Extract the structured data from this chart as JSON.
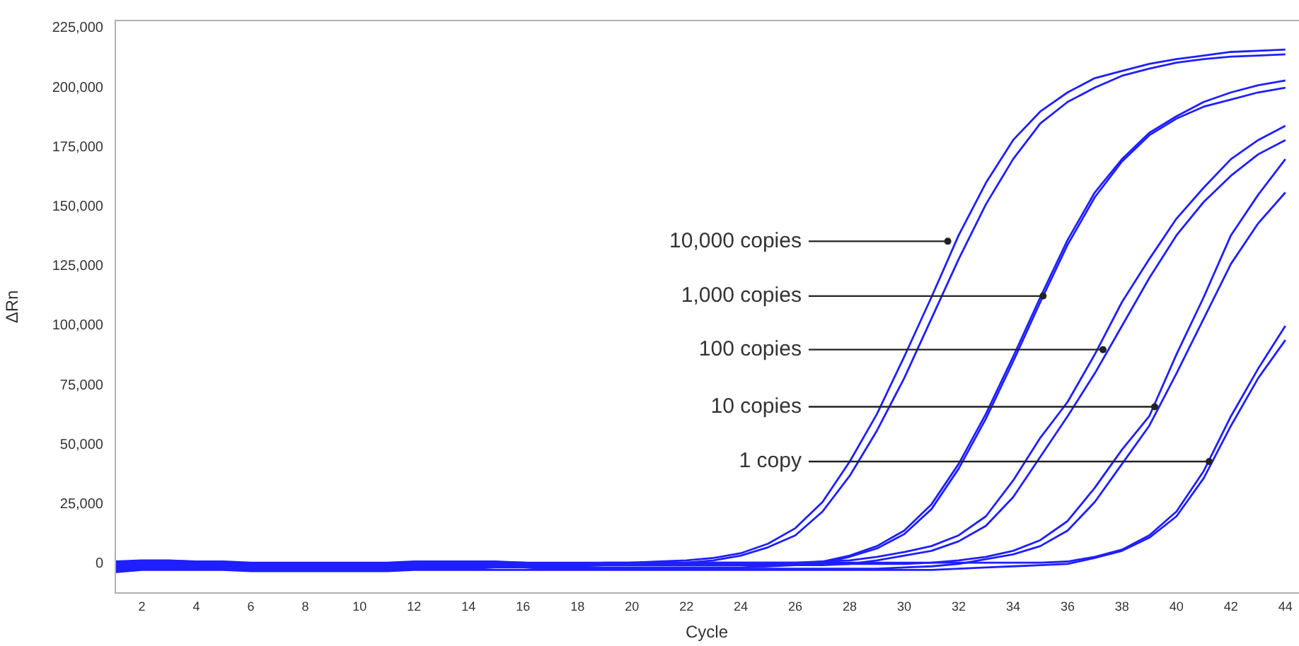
{
  "chart_data": {
    "type": "line",
    "xlabel": "Cycle",
    "ylabel": "ΔRn",
    "x": [
      1,
      2,
      3,
      4,
      5,
      6,
      7,
      8,
      9,
      10,
      11,
      12,
      13,
      14,
      15,
      16,
      17,
      18,
      19,
      20,
      21,
      22,
      23,
      24,
      25,
      26,
      27,
      28,
      29,
      30,
      31,
      32,
      33,
      34,
      35,
      36,
      37,
      38,
      39,
      40,
      41,
      42,
      43,
      44
    ],
    "series": [
      {
        "color": "#1f1fff",
        "values": [
          -1000,
          0,
          0,
          0,
          0,
          -500,
          -500,
          -500,
          -500,
          -500,
          -500,
          0,
          0,
          0,
          0,
          0,
          0,
          0,
          0,
          500,
          1000,
          1500,
          2500,
          4500,
          8500,
          15000,
          26000,
          43000,
          63000,
          87000,
          112000,
          138000,
          160000,
          178000,
          190000,
          198000,
          204000,
          207000,
          210000,
          212000,
          213500,
          215000,
          215500,
          216000
        ]
      },
      {
        "color": "#1f1fff",
        "values": [
          -1500,
          -500,
          -500,
          -500,
          -500,
          -1000,
          -1000,
          -1000,
          -1000,
          -1000,
          -1000,
          -500,
          -500,
          -500,
          0,
          0,
          -500,
          -500,
          0,
          0,
          0,
          500,
          1500,
          3500,
          7000,
          12000,
          22000,
          37000,
          56000,
          78000,
          103000,
          128000,
          151000,
          170000,
          185000,
          194000,
          200000,
          205000,
          208000,
          210500,
          212000,
          213000,
          213500,
          214000
        ]
      },
      {
        "color": "#1f1fff",
        "values": [
          -500,
          500,
          500,
          500,
          0,
          -500,
          -500,
          -500,
          -500,
          -500,
          -500,
          0,
          0,
          0,
          500,
          0,
          -500,
          -500,
          0,
          0,
          0,
          0,
          0,
          0,
          0,
          0,
          1000,
          3500,
          7500,
          14000,
          25000,
          42000,
          63000,
          87000,
          112000,
          136000,
          156000,
          170000,
          181000,
          188000,
          194000,
          198000,
          201000,
          203000
        ]
      },
      {
        "color": "#1f1fff",
        "values": [
          -2000,
          -1000,
          -1000,
          -1000,
          -1000,
          -1500,
          -1500,
          -1500,
          -1500,
          -1500,
          -1500,
          -1000,
          -1000,
          -1000,
          -500,
          -500,
          -1000,
          -1000,
          -500,
          -500,
          -500,
          -500,
          -500,
          -500,
          -500,
          -500,
          500,
          3000,
          6500,
          12500,
          23000,
          40000,
          61000,
          85000,
          110000,
          134000,
          154000,
          169000,
          180000,
          187000,
          192000,
          195000,
          198000,
          200000
        ]
      },
      {
        "color": "#1f1fff",
        "values": [
          0,
          500,
          500,
          0,
          0,
          0,
          -500,
          -500,
          -500,
          -500,
          0,
          0,
          500,
          500,
          500,
          500,
          0,
          0,
          500,
          500,
          500,
          500,
          500,
          500,
          500,
          500,
          1000,
          1500,
          3000,
          5000,
          7500,
          12000,
          20000,
          35000,
          53000,
          68000,
          88000,
          110000,
          128000,
          145000,
          158000,
          170000,
          178000,
          184000
        ]
      },
      {
        "color": "#1f1fff",
        "values": [
          -2500,
          -1500,
          -1500,
          -1500,
          -1500,
          -2000,
          -2000,
          -2000,
          -2000,
          -2000,
          -2000,
          -1500,
          -1500,
          -1500,
          -1000,
          -1000,
          -1500,
          -1500,
          -1500,
          -1500,
          -1500,
          -1500,
          -1500,
          -1500,
          -1000,
          -500,
          -500,
          0,
          1500,
          3500,
          5500,
          9500,
          16000,
          28000,
          45000,
          62000,
          80000,
          100000,
          120000,
          138000,
          152000,
          163000,
          172000,
          178000
        ]
      },
      {
        "color": "#1f1fff",
        "values": [
          500,
          1000,
          1000,
          500,
          500,
          0,
          0,
          0,
          0,
          0,
          0,
          500,
          500,
          500,
          500,
          500,
          0,
          0,
          0,
          0,
          0,
          0,
          0,
          0,
          0,
          0,
          0,
          0,
          0,
          0,
          500,
          1500,
          3000,
          5500,
          10000,
          18000,
          32000,
          48000,
          62000,
          88000,
          112000,
          138000,
          155000,
          170000
        ]
      },
      {
        "color": "#1f1fff",
        "values": [
          -3000,
          -2000,
          -2000,
          -2000,
          -2000,
          -2500,
          -2500,
          -2500,
          -2500,
          -2500,
          -2500,
          -2000,
          -2000,
          -2000,
          -1500,
          -1500,
          -2000,
          -2000,
          -2000,
          -2000,
          -2000,
          -2000,
          -2000,
          -2000,
          -2000,
          -2000,
          -2000,
          -2000,
          -2000,
          -1500,
          -1000,
          0,
          2000,
          4000,
          7500,
          14000,
          26000,
          42000,
          58000,
          80000,
          103000,
          126000,
          143000,
          156000
        ]
      },
      {
        "color": "#1f1fff",
        "values": [
          1000,
          1500,
          1500,
          1000,
          1000,
          500,
          500,
          500,
          500,
          500,
          500,
          1000,
          1000,
          1000,
          1000,
          500,
          500,
          500,
          500,
          500,
          500,
          500,
          500,
          500,
          500,
          500,
          500,
          500,
          500,
          500,
          500,
          500,
          500,
          500,
          500,
          1000,
          3000,
          6000,
          12000,
          22000,
          39000,
          62000,
          82000,
          100000
        ]
      },
      {
        "color": "#1f1fff",
        "values": [
          -3500,
          -2500,
          -2500,
          -2500,
          -2500,
          -3000,
          -3000,
          -3000,
          -3000,
          -3000,
          -3000,
          -2500,
          -2500,
          -2500,
          -2500,
          -2500,
          -2500,
          -2500,
          -2500,
          -2500,
          -2500,
          -2500,
          -2500,
          -2500,
          -2500,
          -2500,
          -2500,
          -2500,
          -2500,
          -2500,
          -2500,
          -2000,
          -1500,
          -1000,
          -500,
          0,
          2500,
          5500,
          11000,
          20000,
          36000,
          58000,
          78000,
          94000
        ]
      }
    ],
    "xlim": [
      1,
      44.5
    ],
    "xticks": [
      2,
      4,
      6,
      8,
      10,
      12,
      14,
      16,
      18,
      20,
      22,
      24,
      26,
      28,
      30,
      32,
      34,
      36,
      38,
      40,
      42,
      44
    ],
    "ylim": [
      -12500,
      228500
    ],
    "yticks": [
      0,
      {
        "value": 25000,
        "label": "25,000"
      },
      {
        "value": 50000,
        "label": "50,000"
      },
      {
        "value": 75000,
        "label": "75,000"
      },
      {
        "value": 100000,
        "label": "100,000"
      },
      {
        "value": 125000,
        "label": "125,000"
      },
      {
        "value": 150000,
        "label": "150,000"
      },
      {
        "value": 175000,
        "label": "175,000"
      },
      {
        "value": 200000,
        "label": "200,000"
      },
      {
        "value": 225000,
        "label": "225,000"
      }
    ],
    "annotations": [
      {
        "text": "10,000 copies",
        "x": 31.6,
        "y": 135500
      },
      {
        "text": "1,000 copies",
        "x": 35.1,
        "y": 112500
      },
      {
        "text": "100 copies",
        "x": 37.3,
        "y": 90000
      },
      {
        "text": "10 copies",
        "x": 39.2,
        "y": 66000
      },
      {
        "text": "1 copy",
        "x": 41.2,
        "y": 43000
      }
    ],
    "grid": false,
    "legend": false,
    "marker": "none",
    "line_style": "solid"
  }
}
